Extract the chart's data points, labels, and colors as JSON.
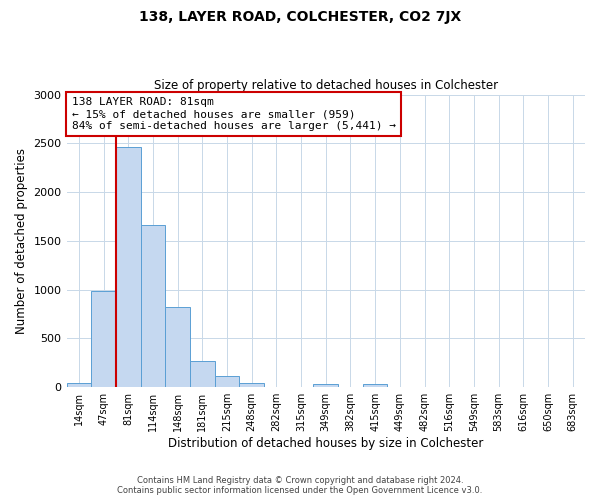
{
  "title": "138, LAYER ROAD, COLCHESTER, CO2 7JX",
  "subtitle": "Size of property relative to detached houses in Colchester",
  "xlabel": "Distribution of detached houses by size in Colchester",
  "ylabel": "Number of detached properties",
  "categories": [
    "14sqm",
    "47sqm",
    "81sqm",
    "114sqm",
    "148sqm",
    "181sqm",
    "215sqm",
    "248sqm",
    "282sqm",
    "315sqm",
    "349sqm",
    "382sqm",
    "415sqm",
    "449sqm",
    "482sqm",
    "516sqm",
    "549sqm",
    "583sqm",
    "616sqm",
    "650sqm",
    "683sqm"
  ],
  "values": [
    45,
    985,
    2465,
    1660,
    820,
    265,
    115,
    40,
    0,
    0,
    35,
    0,
    30,
    0,
    0,
    0,
    0,
    0,
    0,
    0,
    0
  ],
  "bar_color": "#c5d8f0",
  "bar_edge_color": "#5a9fd4",
  "vline_x_idx": 2,
  "vline_color": "#cc0000",
  "annotation_line1": "138 LAYER ROAD: 81sqm",
  "annotation_line2": "← 15% of detached houses are smaller (959)",
  "annotation_line3": "84% of semi-detached houses are larger (5,441) →",
  "annotation_box_color": "#ffffff",
  "annotation_box_edge": "#cc0000",
  "ylim": [
    0,
    3000
  ],
  "yticks": [
    0,
    500,
    1000,
    1500,
    2000,
    2500,
    3000
  ],
  "footer1": "Contains HM Land Registry data © Crown copyright and database right 2024.",
  "footer2": "Contains public sector information licensed under the Open Government Licence v3.0.",
  "background_color": "#ffffff",
  "grid_color": "#c8d8e8",
  "title_fontsize": 10,
  "subtitle_fontsize": 8.5
}
